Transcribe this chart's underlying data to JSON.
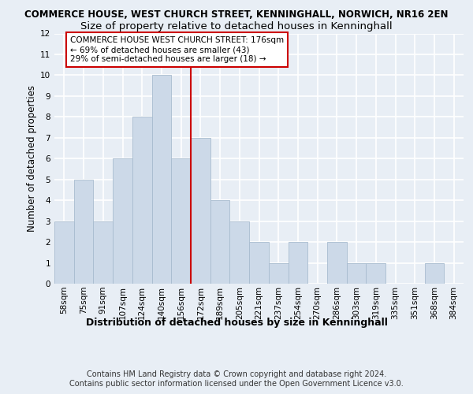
{
  "title": "COMMERCE HOUSE, WEST CHURCH STREET, KENNINGHALL, NORWICH, NR16 2EN",
  "subtitle": "Size of property relative to detached houses in Kenninghall",
  "xlabel": "Distribution of detached houses by size in Kenninghall",
  "ylabel": "Number of detached properties",
  "bar_labels": [
    "58sqm",
    "75sqm",
    "91sqm",
    "107sqm",
    "124sqm",
    "140sqm",
    "156sqm",
    "172sqm",
    "189sqm",
    "205sqm",
    "221sqm",
    "237sqm",
    "254sqm",
    "270sqm",
    "286sqm",
    "303sqm",
    "319sqm",
    "335sqm",
    "351sqm",
    "368sqm",
    "384sqm"
  ],
  "bar_values": [
    3,
    5,
    3,
    6,
    8,
    10,
    6,
    7,
    4,
    3,
    2,
    1,
    2,
    0,
    2,
    1,
    1,
    0,
    0,
    1,
    0
  ],
  "bar_color": "#ccd9e8",
  "bar_edgecolor": "#a8bccf",
  "vline_index": 7,
  "vline_color": "#cc0000",
  "annotation_text": "COMMERCE HOUSE WEST CHURCH STREET: 176sqm\n← 69% of detached houses are smaller (43)\n29% of semi-detached houses are larger (18) →",
  "annotation_box_edgecolor": "#cc0000",
  "annotation_box_facecolor": "#ffffff",
  "ylim": [
    0,
    12
  ],
  "yticks": [
    0,
    1,
    2,
    3,
    4,
    5,
    6,
    7,
    8,
    9,
    10,
    11,
    12
  ],
  "footnote": "Contains HM Land Registry data © Crown copyright and database right 2024.\nContains public sector information licensed under the Open Government Licence v3.0.",
  "background_color": "#e8eef5",
  "plot_background": "#e8eef5",
  "grid_color": "#ffffff",
  "title_fontsize": 8.5,
  "subtitle_fontsize": 9.5,
  "ylabel_fontsize": 8.5,
  "xlabel_fontsize": 9,
  "tick_fontsize": 7.5,
  "annotation_fontsize": 7.5,
  "footnote_fontsize": 7.0
}
